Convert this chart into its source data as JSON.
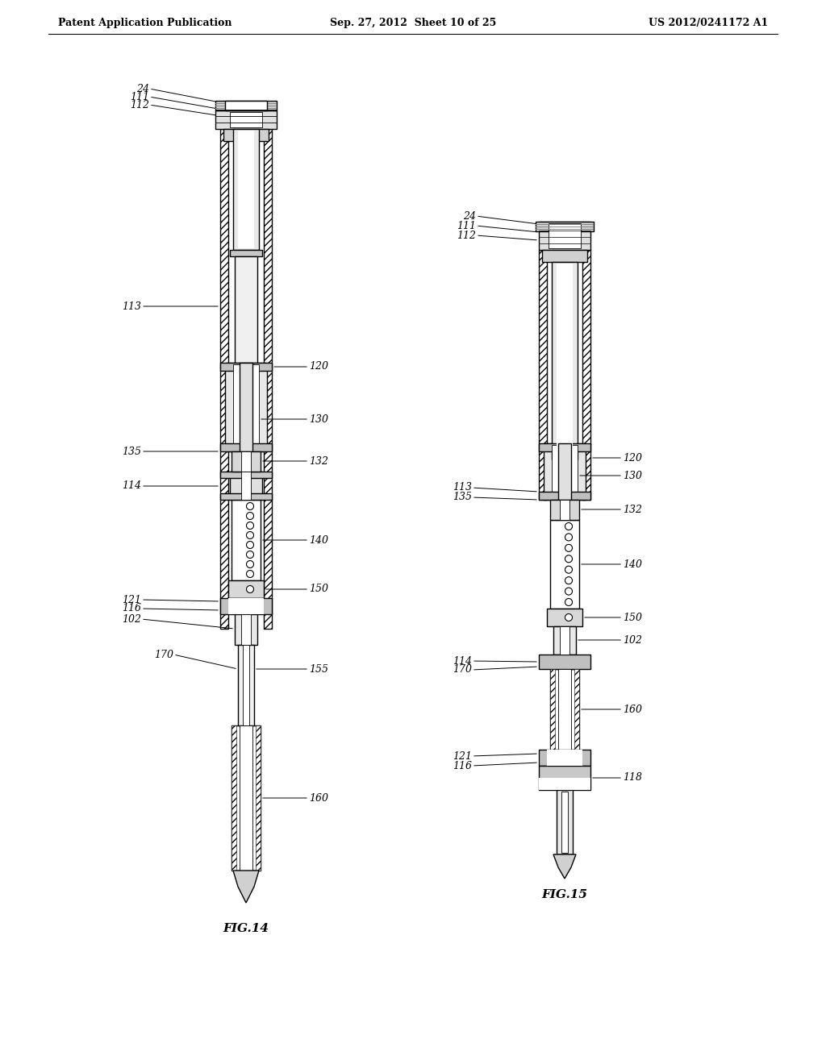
{
  "title_left": "Patent Application Publication",
  "title_center": "Sep. 27, 2012  Sheet 10 of 25",
  "title_right": "US 2012/0241172 A1",
  "fig14_label": "FIG.14",
  "fig15_label": "FIG.15",
  "bg_color": "#ffffff",
  "line_color": "#000000",
  "hatch_color": "#555555",
  "gray_light": "#e8e8e8",
  "gray_mid": "#cccccc",
  "gray_dark": "#999999"
}
